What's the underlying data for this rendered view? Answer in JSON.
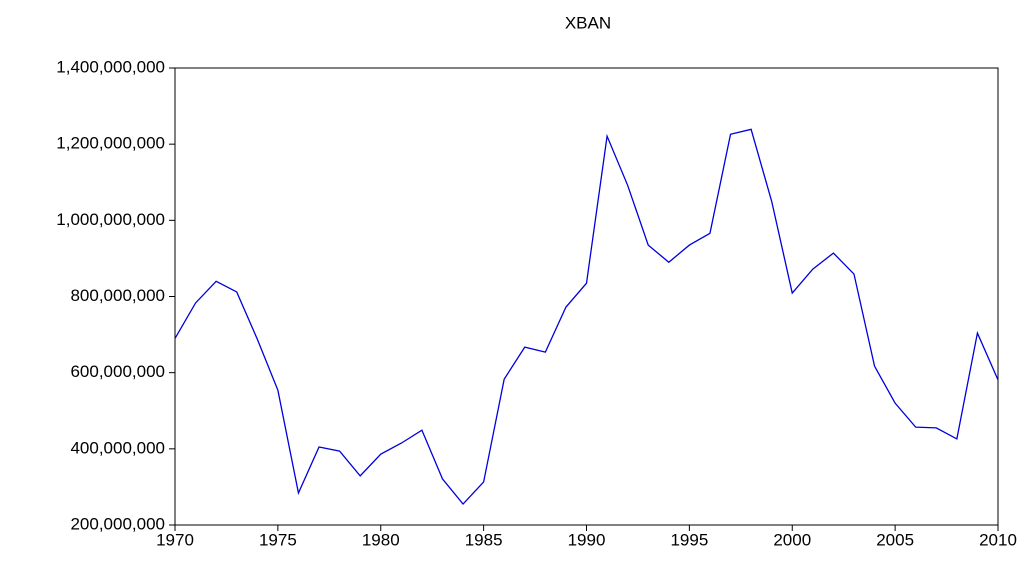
{
  "chart_data": {
    "type": "line",
    "title": "XBAN",
    "x": [
      1970,
      1971,
      1972,
      1973,
      1974,
      1975,
      1976,
      1977,
      1978,
      1979,
      1980,
      1981,
      1982,
      1983,
      1984,
      1985,
      1986,
      1987,
      1988,
      1989,
      1990,
      1991,
      1992,
      1993,
      1994,
      1995,
      1996,
      1997,
      1998,
      1999,
      2000,
      2001,
      2002,
      2003,
      2004,
      2005,
      2006,
      2007,
      2008,
      2009,
      2010
    ],
    "series": [
      {
        "name": "XBAN",
        "color": "#0000dd",
        "values": [
          690000000,
          783000000,
          840000000,
          812000000,
          688000000,
          554000000,
          284000000,
          405000000,
          394000000,
          329000000,
          386000000,
          415000000,
          449000000,
          321000000,
          255000000,
          313000000,
          583000000,
          667000000,
          654000000,
          772000000,
          835000000,
          1221000000,
          1092000000,
          935000000,
          890000000,
          935000000,
          966000000,
          1226000000,
          1239000000,
          1050000000,
          809000000,
          872000000,
          914000000,
          859000000,
          617000000,
          520000000,
          457000000,
          455000000,
          426000000,
          704000000,
          581000000
        ]
      }
    ],
    "xlim": [
      1970,
      2010
    ],
    "xticks": [
      1970,
      1975,
      1980,
      1985,
      1990,
      1995,
      2000,
      2005,
      2010
    ],
    "ylim": [
      200000000,
      1400000000
    ],
    "yticks": [
      {
        "value": 200000000,
        "label": "200,000,000"
      },
      {
        "value": 400000000,
        "label": "400,000,000"
      },
      {
        "value": 600000000,
        "label": "600,000,000"
      },
      {
        "value": 800000000,
        "label": "800,000,000"
      },
      {
        "value": 1000000000,
        "label": "1,000,000,000"
      },
      {
        "value": 1200000000,
        "label": "1,200,000,000"
      },
      {
        "value": 1400000000,
        "label": "1,400,000,000"
      }
    ],
    "grid": false
  }
}
